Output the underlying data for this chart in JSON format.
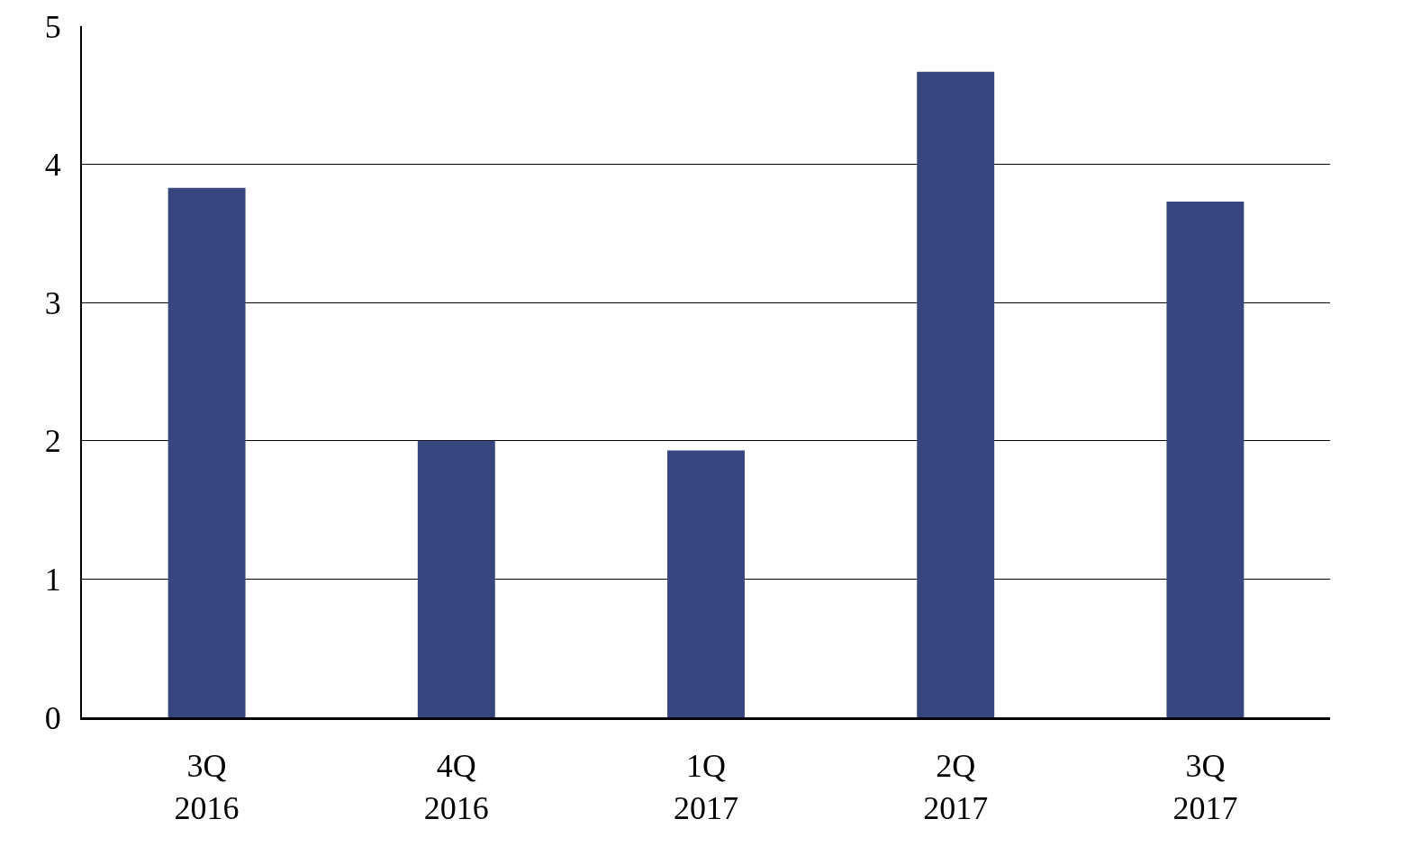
{
  "chart_data": {
    "type": "bar",
    "categories": [
      "3Q\n2016",
      "4Q\n2016",
      "1Q\n2017",
      "2Q\n2017",
      "3Q\n2017"
    ],
    "values": [
      3.83,
      2.0,
      1.93,
      4.67,
      3.73
    ],
    "color": "#38467f",
    "ylim": [
      0,
      5
    ],
    "yticks": [
      0,
      1,
      2,
      3,
      4,
      5
    ],
    "grid": "y"
  }
}
